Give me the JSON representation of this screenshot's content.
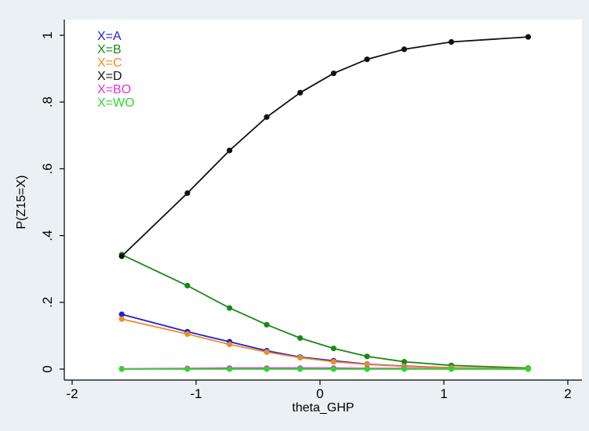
{
  "chart_data": {
    "type": "line",
    "title": "",
    "xlabel": "theta_GHP",
    "ylabel": "P(Z15=X)",
    "xlim": [
      -2,
      2
    ],
    "ylim": [
      0,
      1
    ],
    "x_ticks": [
      -2,
      -1,
      0,
      1,
      2
    ],
    "x_tick_labels": [
      "-2",
      "-1",
      "0",
      "1",
      "2"
    ],
    "y_ticks": [
      0,
      0.2,
      0.4,
      0.6,
      0.8,
      1
    ],
    "y_tick_labels": [
      "0",
      ".2",
      ".4",
      ".6",
      ".8",
      "1"
    ],
    "grid": false,
    "legend_position": "top-left",
    "x": [
      -1.6,
      -1.07,
      -0.73,
      -0.43,
      -0.16,
      0.11,
      0.38,
      0.68,
      1.06,
      1.68
    ],
    "series": [
      {
        "name": "X=A",
        "color": "#1f1fd6",
        "values": [
          0.164,
          0.112,
          0.082,
          0.055,
          0.036,
          0.025,
          0.015,
          0.009,
          0.004,
          0.001
        ]
      },
      {
        "name": "X=B",
        "color": "#168a16",
        "values": [
          0.343,
          0.25,
          0.183,
          0.133,
          0.093,
          0.062,
          0.038,
          0.022,
          0.011,
          0.003
        ]
      },
      {
        "name": "X=C",
        "color": "#f08a24",
        "values": [
          0.15,
          0.105,
          0.074,
          0.051,
          0.034,
          0.022,
          0.014,
          0.008,
          0.004,
          0.001
        ]
      },
      {
        "name": "X=D",
        "color": "#111111",
        "values": [
          0.338,
          0.527,
          0.655,
          0.755,
          0.828,
          0.886,
          0.928,
          0.958,
          0.98,
          0.995
        ]
      },
      {
        "name": "X=BO",
        "color": "#e034e0",
        "values": [
          0.001,
          0.002,
          0.003,
          0.003,
          0.003,
          0.003,
          0.002,
          0.002,
          0.001,
          0.0
        ]
      },
      {
        "name": "X=WO",
        "color": "#2cd82c",
        "values": [
          0.0,
          0.0,
          0.0,
          0.0,
          0.0,
          0.0,
          0.0,
          0.0,
          0.0,
          0.0
        ]
      }
    ]
  }
}
